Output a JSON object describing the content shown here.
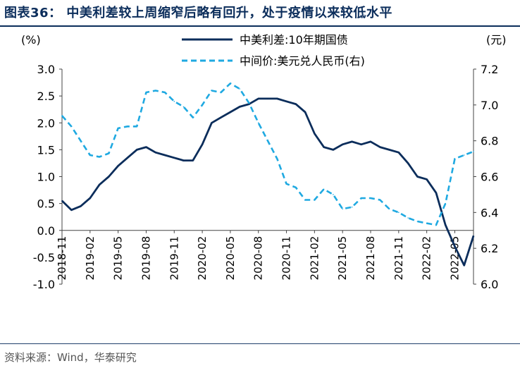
{
  "title": "图表36：  中美利差较上周缩窄后略有回升，处于疫情以来较低水平",
  "source": "资料来源：Wind，华泰研究",
  "chart_data": {
    "type": "line",
    "left_unit": "(%)",
    "right_unit": "(元)",
    "y_left_range": [
      -1.0,
      3.0
    ],
    "y_left_ticks": [
      "3.0",
      "2.5",
      "2.0",
      "1.5",
      "1.0",
      "0.5",
      "0.0",
      "-0.5",
      "-1.0"
    ],
    "y_right_range": [
      6.0,
      7.2
    ],
    "y_right_ticks": [
      "7.2",
      "7.0",
      "6.8",
      "6.6",
      "6.4",
      "6.2",
      "6.0"
    ],
    "x_ticks": [
      "2018-11",
      "2019-02",
      "2019-05",
      "2019-08",
      "2019-11",
      "2020-02",
      "2020-05",
      "2020-08",
      "2020-11",
      "2021-02",
      "2021-05",
      "2021-08",
      "2021-11",
      "2022-02",
      "2022-05"
    ],
    "legend_position": "top",
    "series": [
      {
        "name": "中美利差:10年期国债",
        "axis": "left",
        "color": "#0b2d5b",
        "style": "solid",
        "x": [
          "2018-11",
          "2018-12",
          "2019-01",
          "2019-02",
          "2019-03",
          "2019-04",
          "2019-05",
          "2019-06",
          "2019-07",
          "2019-08",
          "2019-09",
          "2019-10",
          "2019-11",
          "2019-12",
          "2020-01",
          "2020-02",
          "2020-03",
          "2020-04",
          "2020-05",
          "2020-06",
          "2020-07",
          "2020-08",
          "2020-09",
          "2020-10",
          "2020-11",
          "2020-12",
          "2021-01",
          "2021-02",
          "2021-03",
          "2021-04",
          "2021-05",
          "2021-06",
          "2021-07",
          "2021-08",
          "2021-09",
          "2021-10",
          "2021-11",
          "2021-12",
          "2022-01",
          "2022-02",
          "2022-03",
          "2022-04",
          "2022-05",
          "2022-06",
          "2022-07"
        ],
        "values": [
          0.55,
          0.38,
          0.45,
          0.6,
          0.85,
          1.0,
          1.2,
          1.35,
          1.5,
          1.55,
          1.45,
          1.4,
          1.35,
          1.3,
          1.3,
          1.6,
          2.0,
          2.1,
          2.2,
          2.3,
          2.35,
          2.45,
          2.45,
          2.45,
          2.4,
          2.35,
          2.2,
          1.8,
          1.55,
          1.5,
          1.6,
          1.65,
          1.6,
          1.65,
          1.55,
          1.5,
          1.45,
          1.25,
          1.0,
          0.95,
          0.7,
          0.1,
          -0.3,
          -0.65,
          -0.1
        ]
      },
      {
        "name": "中间价:美元兑人民币(右)",
        "axis": "right",
        "color": "#1fa9e1",
        "style": "dashed",
        "x": [
          "2018-11",
          "2018-12",
          "2019-01",
          "2019-02",
          "2019-03",
          "2019-04",
          "2019-05",
          "2019-06",
          "2019-07",
          "2019-08",
          "2019-09",
          "2019-10",
          "2019-11",
          "2019-12",
          "2020-01",
          "2020-02",
          "2020-03",
          "2020-04",
          "2020-05",
          "2020-06",
          "2020-07",
          "2020-08",
          "2020-09",
          "2020-10",
          "2020-11",
          "2020-12",
          "2021-01",
          "2021-02",
          "2021-03",
          "2021-04",
          "2021-05",
          "2021-06",
          "2021-07",
          "2021-08",
          "2021-09",
          "2021-10",
          "2021-11",
          "2021-12",
          "2022-01",
          "2022-02",
          "2022-03",
          "2022-04",
          "2022-05",
          "2022-06",
          "2022-07"
        ],
        "values": [
          6.94,
          6.88,
          6.8,
          6.72,
          6.71,
          6.73,
          6.87,
          6.88,
          6.88,
          7.07,
          7.08,
          7.07,
          7.02,
          6.99,
          6.93,
          7.0,
          7.08,
          7.07,
          7.12,
          7.09,
          7.01,
          6.9,
          6.8,
          6.7,
          6.56,
          6.54,
          6.47,
          6.47,
          6.53,
          6.5,
          6.42,
          6.43,
          6.48,
          6.48,
          6.47,
          6.42,
          6.4,
          6.37,
          6.35,
          6.34,
          6.33,
          6.45,
          6.7,
          6.72,
          6.74
        ]
      }
    ]
  }
}
